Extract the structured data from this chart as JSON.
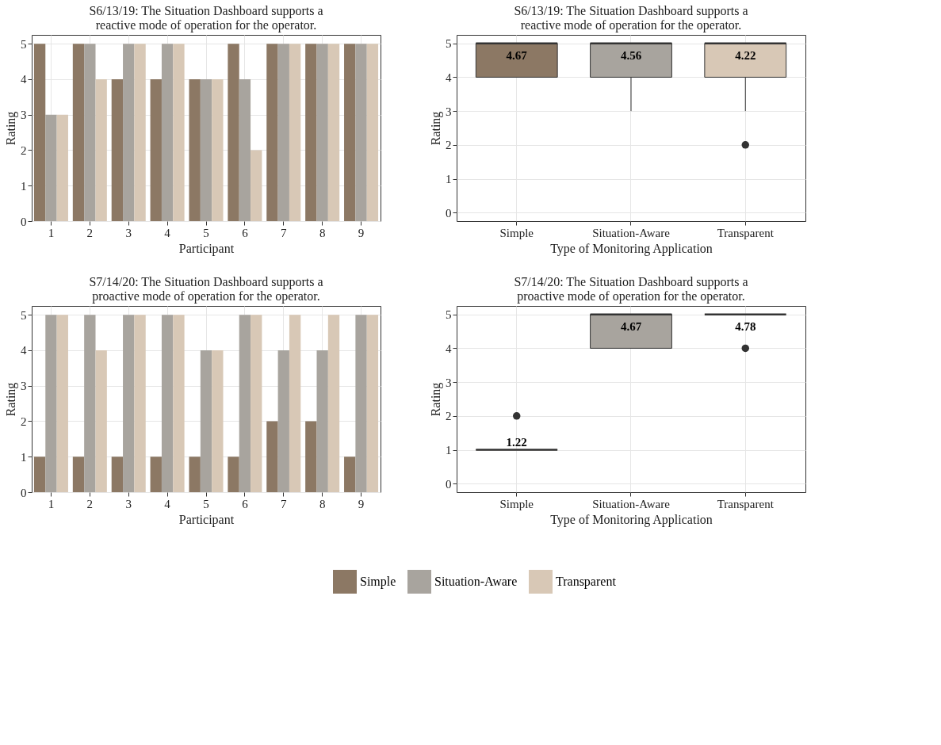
{
  "chart_data": [
    {
      "type": "bar",
      "title": "S6/13/19: The Situation Dashboard supports a\nreactive mode of operation for the operator.",
      "xlabel": "Participant",
      "ylabel": "Rating",
      "categories": [
        "1",
        "2",
        "3",
        "4",
        "5",
        "6",
        "7",
        "8",
        "9"
      ],
      "series": [
        {
          "name": "Simple",
          "color": "#8c7864",
          "values": [
            5,
            5,
            4,
            4,
            4,
            5,
            5,
            5,
            5
          ]
        },
        {
          "name": "Situation-Aware",
          "color": "#a8a49e",
          "values": [
            3,
            5,
            5,
            5,
            4,
            4,
            5,
            5,
            5
          ]
        },
        {
          "name": "Transparent",
          "color": "#d8c8b6",
          "values": [
            3,
            4,
            5,
            5,
            4,
            2,
            5,
            5,
            5
          ]
        }
      ],
      "ylim": [
        0,
        5.25
      ],
      "yticks": [
        0,
        1,
        2,
        3,
        4,
        5
      ],
      "grid": true,
      "legend": "bottom"
    },
    {
      "type": "box",
      "title": "S6/13/19: The Situation Dashboard supports a\nreactive mode of operation for the operator.",
      "xlabel": "Type of Monitoring Application",
      "ylabel": "Rating",
      "categories": [
        "Simple",
        "Situation-Aware",
        "Transparent"
      ],
      "colors": [
        "#8c7864",
        "#a8a49e",
        "#d8c8b6"
      ],
      "boxes": [
        {
          "low": 4,
          "q1": 4,
          "median": 5,
          "q3": 5,
          "high": 5
        },
        {
          "low": 3,
          "q1": 4,
          "median": 5,
          "q3": 5,
          "high": 5
        },
        {
          "low": 3,
          "q1": 4,
          "median": 5,
          "q3": 5,
          "high": 5,
          "outliers": [
            2
          ]
        }
      ],
      "annotations": [
        "4.67",
        "4.56",
        "4.22"
      ],
      "ylim": [
        -0.25,
        5.25
      ],
      "yticks": [
        0,
        1,
        2,
        3,
        4,
        5
      ],
      "grid": true
    },
    {
      "type": "bar",
      "title": "S7/14/20: The Situation Dashboard supports a\nproactive mode of operation for the operator.",
      "xlabel": "Participant",
      "ylabel": "Rating",
      "categories": [
        "1",
        "2",
        "3",
        "4",
        "5",
        "6",
        "7",
        "8",
        "9"
      ],
      "series": [
        {
          "color": "#8c7864",
          "values": [
            1,
            1,
            1,
            1,
            1,
            1,
            2,
            2,
            1
          ]
        },
        {
          "color": "#a8a49e",
          "values": [
            5,
            5,
            5,
            5,
            4,
            5,
            4,
            4,
            5
          ]
        },
        {
          "color": "#d8c8b6",
          "values": [
            5,
            4,
            5,
            5,
            4,
            5,
            5,
            5,
            5
          ]
        }
      ],
      "ylim": [
        0,
        5.25
      ],
      "yticks": [
        0,
        1,
        2,
        3,
        4,
        5
      ],
      "grid": true
    },
    {
      "type": "box",
      "title": "S7/14/20: The Situation Dashboard supports a\nproactive mode of operation for the operator.",
      "xlabel": "Type of Monitoring Application",
      "ylabel": "Rating",
      "categories": [
        "Simple",
        "Situation-Aware",
        "Transparent"
      ],
      "colors": [
        "#8c7864",
        "#a8a49e",
        "#d8c8b6"
      ],
      "boxes": [
        {
          "low": 1,
          "q1": 1,
          "median": 1,
          "q3": 1,
          "high": 1,
          "outliers": [
            2
          ]
        },
        {
          "low": 4,
          "q1": 4,
          "median": 5,
          "q3": 5,
          "high": 5
        },
        {
          "low": 5,
          "q1": 5,
          "median": 5,
          "q3": 5,
          "high": 5,
          "outliers": [
            4
          ]
        }
      ],
      "annotations": [
        "1.22",
        "4.67",
        "4.78"
      ],
      "ylim": [
        -0.25,
        5.25
      ],
      "yticks": [
        0,
        1,
        2,
        3,
        4,
        5
      ],
      "grid": true
    }
  ]
}
